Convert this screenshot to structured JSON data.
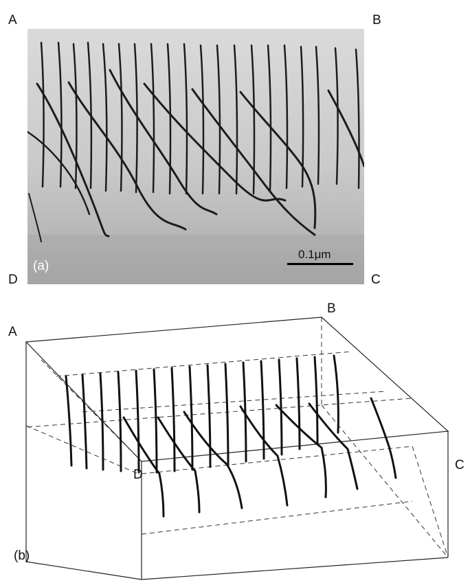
{
  "figure": {
    "panel_a": {
      "label": "(a)",
      "corners": {
        "a": "A",
        "b": "B",
        "c": "C",
        "d": "D"
      },
      "scale_bar": "0.1μm"
    },
    "panel_b": {
      "label": "(b)",
      "corners": {
        "a": "A",
        "b": "B",
        "c": "C",
        "d": "D"
      }
    }
  }
}
